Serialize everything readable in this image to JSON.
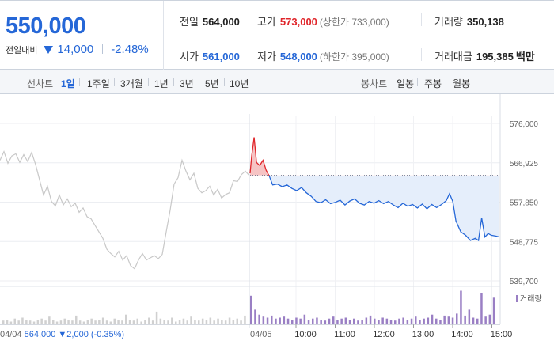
{
  "quote": {
    "price": "550,000",
    "change_label": "전일대비",
    "change_amount": "14,000",
    "change_percent": "-2.48%",
    "direction": "down"
  },
  "stats": {
    "prev_close": {
      "label": "전일",
      "value": "564,000"
    },
    "high": {
      "label": "고가",
      "value": "573,000",
      "note": "(상한가 733,000)"
    },
    "volume": {
      "label": "거래량",
      "value": "350,138"
    },
    "open": {
      "label": "시가",
      "value": "561,000"
    },
    "low": {
      "label": "저가",
      "value": "548,000",
      "note": "(하한가 395,000)"
    },
    "trade_value": {
      "label": "거래대금",
      "value": "195,385",
      "unit": "백만"
    }
  },
  "toolbar": {
    "line_chart_label": "선차트",
    "line_periods": [
      "1일",
      "1주일",
      "3개월",
      "1년",
      "3년",
      "5년",
      "10년"
    ],
    "active_period": "1일",
    "candle_chart_label": "봉차트",
    "candle_periods": [
      "일봉",
      "주봉",
      "월봉"
    ]
  },
  "colors": {
    "up": "#e0262b",
    "down": "#2567d7",
    "prev_day_line": "#c8c8c8",
    "fill_below_prev": "#e5eefb",
    "fill_above_prev": "#f6c4c4",
    "volume_prev_day": "#d0d0d0",
    "volume_today": "#9a7fc4"
  },
  "chart_data": {
    "type": "line",
    "y_ticks": [
      "576,000",
      "566,925",
      "557,850",
      "548,775",
      "539,700"
    ],
    "ylim": [
      539700,
      576000
    ],
    "reference_price": 564000,
    "x_ticks": [
      "10:00",
      "11:00",
      "12:00",
      "13:00",
      "14:00",
      "15:00"
    ],
    "prev_day_date": "04/04",
    "today_date": "04/05",
    "volume_legend": "거래량",
    "footer_prev": {
      "date": "04/04",
      "price": "564,000",
      "change": "2,000",
      "pct": "(-0.35%)"
    },
    "prev_day_series": [
      [
        0,
        567500
      ],
      [
        5,
        569500
      ],
      [
        10,
        566800
      ],
      [
        15,
        568500
      ],
      [
        20,
        569000
      ],
      [
        25,
        567000
      ],
      [
        30,
        568800
      ],
      [
        35,
        567200
      ],
      [
        40,
        569300
      ],
      [
        45,
        566500
      ],
      [
        50,
        563000
      ],
      [
        55,
        559500
      ],
      [
        60,
        561500
      ],
      [
        65,
        558000
      ],
      [
        70,
        557000
      ],
      [
        75,
        559500
      ],
      [
        80,
        557200
      ],
      [
        85,
        558600
      ],
      [
        90,
        556800
      ],
      [
        95,
        557600
      ],
      [
        100,
        555500
      ],
      [
        105,
        556500
      ],
      [
        110,
        554500
      ],
      [
        115,
        554000
      ],
      [
        120,
        552500
      ],
      [
        125,
        551000
      ],
      [
        130,
        549500
      ],
      [
        135,
        547000
      ],
      [
        140,
        546000
      ],
      [
        145,
        545200
      ],
      [
        150,
        546500
      ],
      [
        155,
        544500
      ],
      [
        160,
        545500
      ],
      [
        165,
        543200
      ],
      [
        170,
        542500
      ],
      [
        175,
        544500
      ],
      [
        180,
        546000
      ],
      [
        185,
        544500
      ],
      [
        190,
        545000
      ],
      [
        195,
        545500
      ],
      [
        200,
        544800
      ],
      [
        205,
        545800
      ],
      [
        210,
        551000
      ],
      [
        215,
        556000
      ],
      [
        220,
        562000
      ],
      [
        225,
        563500
      ],
      [
        230,
        567500
      ],
      [
        235,
        565000
      ],
      [
        240,
        563000
      ],
      [
        245,
        564500
      ],
      [
        250,
        561000
      ],
      [
        255,
        560000
      ],
      [
        260,
        560500
      ],
      [
        265,
        561500
      ],
      [
        270,
        559500
      ],
      [
        275,
        560800
      ],
      [
        280,
        558800
      ],
      [
        285,
        559600
      ],
      [
        290,
        560000
      ],
      [
        295,
        562800
      ],
      [
        300,
        562600
      ],
      [
        305,
        564200
      ],
      [
        310,
        565000
      ],
      [
        315,
        564000
      ]
    ],
    "today_series": [
      [
        0,
        564500
      ],
      [
        2,
        568500
      ],
      [
        5,
        572800
      ],
      [
        8,
        567000
      ],
      [
        12,
        566300
      ],
      [
        16,
        567500
      ],
      [
        20,
        565200
      ],
      [
        24,
        563800
      ],
      [
        28,
        561800
      ],
      [
        34,
        562000
      ],
      [
        40,
        561400
      ],
      [
        46,
        561800
      ],
      [
        52,
        561000
      ],
      [
        58,
        560500
      ],
      [
        64,
        561200
      ],
      [
        70,
        560000
      ],
      [
        76,
        559200
      ],
      [
        82,
        558000
      ],
      [
        88,
        557700
      ],
      [
        94,
        558400
      ],
      [
        100,
        557500
      ],
      [
        106,
        557800
      ],
      [
        112,
        558300
      ],
      [
        118,
        557200
      ],
      [
        124,
        558100
      ],
      [
        130,
        558600
      ],
      [
        136,
        557600
      ],
      [
        142,
        557200
      ],
      [
        148,
        558000
      ],
      [
        154,
        557600
      ],
      [
        160,
        558200
      ],
      [
        166,
        557500
      ],
      [
        172,
        558000
      ],
      [
        178,
        557200
      ],
      [
        184,
        556600
      ],
      [
        190,
        557600
      ],
      [
        196,
        556900
      ],
      [
        202,
        557300
      ],
      [
        208,
        556500
      ],
      [
        214,
        557400
      ],
      [
        220,
        556300
      ],
      [
        226,
        557300
      ],
      [
        232,
        556600
      ],
      [
        238,
        557300
      ],
      [
        244,
        558200
      ],
      [
        248,
        559800
      ],
      [
        252,
        558000
      ],
      [
        256,
        553500
      ],
      [
        262,
        551000
      ],
      [
        268,
        550200
      ],
      [
        274,
        549000
      ],
      [
        280,
        549500
      ],
      [
        284,
        549000
      ],
      [
        288,
        554200
      ],
      [
        292,
        549800
      ],
      [
        296,
        550600
      ],
      [
        300,
        550200
      ],
      [
        306,
        550000
      ],
      [
        310,
        549800
      ]
    ],
    "prev_day_volume": [
      3,
      4,
      2,
      5,
      3,
      6,
      4,
      3,
      2,
      4,
      5,
      3,
      7,
      4,
      2,
      3,
      5,
      4,
      3,
      8,
      3,
      2,
      4,
      5,
      3,
      4,
      6,
      3,
      2,
      5,
      4,
      3,
      9,
      4,
      3,
      5,
      2,
      4,
      6,
      3,
      12,
      5,
      4,
      3,
      6,
      2,
      4,
      5,
      3,
      7,
      4,
      3,
      5,
      4,
      6,
      3,
      5,
      4,
      3,
      6,
      4,
      5,
      3,
      8
    ],
    "today_volume": [
      28,
      14,
      9,
      7,
      6,
      8,
      5,
      6,
      7,
      5,
      4,
      6,
      5,
      9,
      4,
      5,
      6,
      4,
      3,
      5,
      7,
      4,
      5,
      6,
      4,
      5,
      3,
      4,
      6,
      8,
      5,
      4,
      6,
      5,
      4,
      3,
      5,
      6,
      4,
      5,
      7,
      4,
      5,
      6,
      9,
      5,
      4,
      8,
      7,
      6,
      10,
      33,
      8,
      14,
      6,
      5,
      31,
      7,
      9,
      26
    ]
  }
}
